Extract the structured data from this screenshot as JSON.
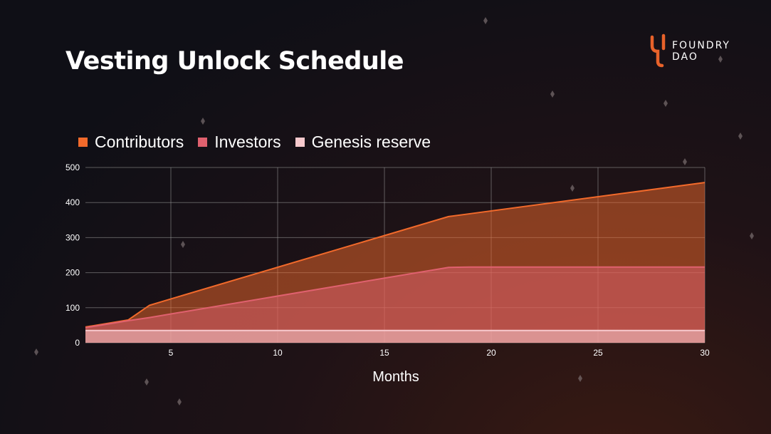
{
  "slide": {
    "title": "Vesting Unlock Schedule"
  },
  "logo": {
    "line1": "FOUNDRY",
    "line2": "DAO",
    "accent": "#e8622a"
  },
  "chart_data": {
    "type": "area",
    "stacked": true,
    "xlabel": "Months",
    "ylabel": "",
    "xlim": [
      1,
      30
    ],
    "ylim": [
      0,
      500
    ],
    "xticks": [
      5,
      10,
      15,
      20,
      25,
      30
    ],
    "yticks": [
      0,
      100,
      200,
      300,
      400,
      500
    ],
    "grid": true,
    "legend_position": "top-left",
    "series": [
      {
        "name": "Genesis reserve",
        "color": "#f7c9cd",
        "points": [
          [
            1,
            35
          ],
          [
            3,
            35
          ],
          [
            4,
            35
          ],
          [
            18,
            35
          ],
          [
            19,
            35
          ],
          [
            30,
            35
          ]
        ]
      },
      {
        "name": "Investors",
        "color": "#e0616f",
        "points": [
          [
            1,
            43
          ],
          [
            3,
            63
          ],
          [
            4,
            72
          ],
          [
            18,
            215
          ],
          [
            19,
            216
          ],
          [
            30,
            216
          ]
        ]
      },
      {
        "name": "Contributors",
        "color": "#f26a2b",
        "points": [
          [
            1,
            45
          ],
          [
            3,
            65
          ],
          [
            4,
            107
          ],
          [
            18,
            360
          ],
          [
            19,
            368
          ],
          [
            30,
            457
          ]
        ]
      }
    ]
  }
}
